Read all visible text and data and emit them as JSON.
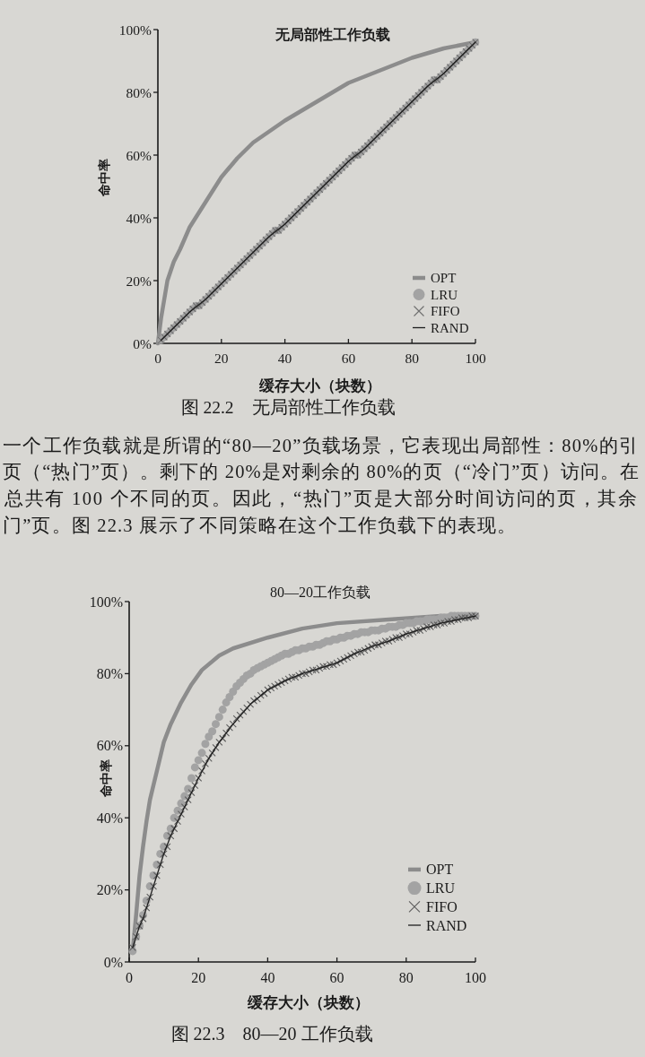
{
  "chart_data": [
    {
      "type": "line",
      "title": "无局部性工作负载",
      "xlabel": "缓存大小（块数）",
      "ylabel": "命中率",
      "annotations": [
        "图 22.2　无局部性工作负载"
      ],
      "xlim": [
        0,
        100
      ],
      "ylim": [
        0,
        100
      ],
      "xticks": [
        0,
        20,
        40,
        60,
        80,
        100
      ],
      "yticks": [
        {
          "value": 0,
          "label": "0%"
        },
        {
          "value": 20,
          "label": "20%"
        },
        {
          "value": 40,
          "label": "40%"
        },
        {
          "value": 60,
          "label": "60%"
        },
        {
          "value": 80,
          "label": "80%"
        },
        {
          "value": 100,
          "label": "100%"
        }
      ],
      "legend": "bottom right",
      "x": [
        1,
        2,
        3,
        4,
        5,
        6,
        7,
        8,
        9,
        10,
        11,
        12,
        13,
        14,
        15,
        16,
        17,
        18,
        19,
        20,
        21,
        22,
        23,
        24,
        25,
        26,
        27,
        28,
        29,
        30,
        31,
        32,
        33,
        34,
        35,
        36,
        37,
        38,
        39,
        40,
        41,
        42,
        43,
        44,
        45,
        46,
        47,
        48,
        49,
        50,
        51,
        52,
        53,
        54,
        55,
        56,
        57,
        58,
        59,
        60,
        61,
        62,
        63,
        64,
        65,
        66,
        67,
        68,
        69,
        70,
        71,
        72,
        73,
        74,
        75,
        76,
        77,
        78,
        79,
        80,
        81,
        82,
        83,
        84,
        85,
        86,
        87,
        88,
        89,
        90,
        91,
        92,
        93,
        94,
        95,
        96,
        97,
        98,
        99,
        100
      ],
      "series": [
        {
          "name": "OPT",
          "type": "line",
          "color": "#8c8c8c",
          "x": [
            0,
            1,
            3,
            5,
            7,
            10,
            15,
            20,
            25,
            30,
            40,
            50,
            60,
            70,
            80,
            90,
            100
          ],
          "values": [
            0,
            8,
            20,
            26,
            30,
            37,
            45,
            53,
            59,
            64,
            71,
            77,
            83,
            87,
            91,
            94,
            96
          ]
        },
        {
          "name": "LRU",
          "type": "scatter",
          "marker": "circle",
          "color": "#a3a3a3",
          "values": [
            1,
            2,
            3,
            4,
            5,
            6,
            7,
            8,
            9,
            10,
            11,
            12,
            12,
            13,
            14,
            15,
            16,
            17,
            18,
            19,
            20,
            21,
            22,
            23,
            24,
            25,
            26,
            27,
            28,
            29,
            30,
            31,
            32,
            33,
            34,
            35,
            36,
            36,
            37,
            38,
            39,
            40,
            41,
            42,
            43,
            44,
            45,
            46,
            47,
            48,
            49,
            50,
            51,
            52,
            53,
            54,
            55,
            56,
            57,
            58,
            59,
            60,
            60,
            61,
            62,
            63,
            64,
            65,
            66,
            67,
            68,
            69,
            70,
            71,
            72,
            73,
            74,
            75,
            76,
            77,
            78,
            79,
            80,
            81,
            82,
            83,
            84,
            84,
            85,
            86,
            87,
            88,
            89,
            90,
            91,
            92,
            93,
            94,
            95,
            96
          ]
        },
        {
          "name": "FIFO",
          "type": "scatter",
          "marker": "cross",
          "color": "#6e6e6e",
          "values": [
            1,
            2,
            3,
            4,
            5,
            6,
            7,
            8,
            9,
            10,
            11,
            12,
            12,
            13,
            14,
            15,
            16,
            17,
            18,
            19,
            20,
            21,
            22,
            23,
            24,
            25,
            26,
            27,
            28,
            29,
            30,
            31,
            32,
            33,
            34,
            35,
            36,
            36,
            37,
            38,
            39,
            40,
            41,
            42,
            43,
            44,
            45,
            46,
            47,
            48,
            49,
            50,
            51,
            52,
            53,
            54,
            55,
            56,
            57,
            58,
            59,
            60,
            60,
            61,
            62,
            63,
            64,
            65,
            66,
            67,
            68,
            69,
            70,
            71,
            72,
            73,
            74,
            75,
            76,
            77,
            78,
            79,
            80,
            81,
            82,
            83,
            84,
            84,
            85,
            86,
            87,
            88,
            89,
            90,
            91,
            92,
            93,
            94,
            95,
            96
          ]
        },
        {
          "name": "RAND",
          "type": "line",
          "color": "#1e1e1e",
          "x": [
            1,
            5,
            10,
            15,
            20,
            25,
            30,
            35,
            40,
            45,
            50,
            55,
            60,
            65,
            70,
            75,
            80,
            85,
            90,
            95,
            100
          ],
          "values": [
            1,
            5,
            10,
            14,
            19,
            24,
            29,
            34,
            38,
            43,
            48,
            53,
            58,
            62,
            67,
            72,
            77,
            82,
            86,
            91,
            96
          ]
        }
      ]
    },
    {
      "type": "other",
      "annotations": [
        "一个工作负载就是所谓的“80—20”负载场景，它表现出局部性：80%的引",
        "页（“热门”页）。剩下的 20%是对剩余的 80%的页（“冷门”页）访问。在",
        "总共有 100 个不同的页。因此，“热门”页是大部分时间访问的页，其余",
        "门”页。图 22.3 展示了不同策略在这个工作负载下的表现。"
      ]
    },
    {
      "type": "line",
      "title": "80—20工作负载",
      "xlabel": "缓存大小（块数）",
      "ylabel": "命中率",
      "annotations": [
        "图 22.3　80—20 工作负载"
      ],
      "xlim": [
        0,
        100
      ],
      "ylim": [
        0,
        100
      ],
      "xticks": [
        0,
        20,
        40,
        60,
        80,
        100
      ],
      "yticks": [
        {
          "value": 0,
          "label": "0%"
        },
        {
          "value": 20,
          "label": "20%"
        },
        {
          "value": 40,
          "label": "40%"
        },
        {
          "value": 60,
          "label": "60%"
        },
        {
          "value": 80,
          "label": "80%"
        },
        {
          "value": 100,
          "label": "100%"
        }
      ],
      "legend": "bottom right",
      "x": [
        1,
        2,
        3,
        4,
        5,
        6,
        7,
        8,
        9,
        10,
        11,
        12,
        13,
        14,
        15,
        16,
        17,
        18,
        19,
        20,
        21,
        22,
        23,
        24,
        25,
        26,
        27,
        28,
        29,
        30,
        31,
        32,
        33,
        34,
        35,
        36,
        37,
        38,
        39,
        40,
        41,
        42,
        43,
        44,
        45,
        46,
        47,
        48,
        49,
        50,
        51,
        52,
        53,
        54,
        55,
        56,
        57,
        58,
        59,
        60,
        61,
        62,
        63,
        64,
        65,
        66,
        67,
        68,
        69,
        70,
        71,
        72,
        73,
        74,
        75,
        76,
        77,
        78,
        79,
        80,
        81,
        82,
        83,
        84,
        85,
        86,
        87,
        88,
        89,
        90,
        91,
        92,
        93,
        94,
        95,
        96,
        97,
        98,
        99,
        100
      ],
      "series": [
        {
          "name": "OPT",
          "type": "line",
          "color": "#8c8c8c",
          "x": [
            1,
            2,
            3,
            4,
            5,
            6,
            7,
            8,
            10,
            12,
            15,
            18,
            21,
            26,
            30,
            40,
            50,
            60,
            75,
            90,
            100
          ],
          "values": [
            3,
            13,
            24,
            32,
            39,
            45,
            49,
            53,
            61,
            66,
            72,
            77,
            81,
            85,
            87,
            90,
            92.5,
            94,
            95,
            96,
            96
          ]
        },
        {
          "name": "LRU",
          "type": "scatter",
          "marker": "circle",
          "color": "#a3a3a3",
          "values": [
            3,
            7,
            10,
            13,
            17,
            21,
            24,
            27,
            30,
            32,
            35,
            37,
            40,
            42,
            44,
            46,
            48,
            51,
            54,
            56,
            58,
            60.5,
            62.5,
            64,
            66,
            68,
            70,
            72,
            73.5,
            75,
            76.5,
            77.5,
            78.5,
            79.5,
            80,
            81,
            81.5,
            82,
            82.5,
            83,
            83.5,
            84,
            84.5,
            85,
            85.5,
            85.5,
            86,
            86.5,
            86.5,
            87,
            87,
            87.5,
            87.5,
            88,
            88,
            88.5,
            89,
            89,
            89.5,
            89.5,
            90,
            90,
            90.5,
            90.5,
            91,
            91,
            91.5,
            91.5,
            91.5,
            92,
            92,
            92,
            92.5,
            92.5,
            93,
            93,
            93,
            93.5,
            93.5,
            94,
            94,
            94,
            94.5,
            94.5,
            94.5,
            95,
            95,
            95,
            95,
            95.5,
            95.5,
            95.5,
            96,
            96,
            96,
            96,
            96,
            96,
            96,
            96
          ]
        },
        {
          "name": "FIFO",
          "type": "scatter",
          "marker": "cross",
          "color": "#5e5e5e",
          "values": [
            4,
            7,
            10,
            12,
            15,
            18,
            21,
            24,
            27,
            30,
            32,
            35,
            37,
            39,
            41,
            43,
            45,
            47,
            49,
            51,
            53,
            55,
            56.5,
            58,
            59.5,
            61,
            62,
            63.5,
            65,
            66,
            67.5,
            68.5,
            69.5,
            70.5,
            71.5,
            72.5,
            73,
            74,
            74.5,
            75.5,
            76,
            76.5,
            77,
            77.5,
            78,
            78.5,
            79,
            79,
            79.5,
            80,
            80,
            80.5,
            81,
            81,
            81.5,
            82,
            82,
            82.5,
            82.5,
            83,
            83.5,
            84,
            84.5,
            85,
            85.5,
            86,
            86,
            86.5,
            87,
            87.5,
            88,
            88,
            88.5,
            89,
            89,
            89.5,
            90,
            90,
            90.5,
            91,
            91,
            91.5,
            92,
            92,
            92.5,
            93,
            93,
            93.5,
            93.5,
            94,
            94,
            94.5,
            94.5,
            95,
            95,
            95.5,
            95.5,
            95.5,
            96,
            96
          ]
        },
        {
          "name": "RAND",
          "type": "line",
          "color": "#1e1e1e",
          "x": [
            1,
            2,
            3,
            4,
            5,
            6,
            8,
            10,
            12,
            14,
            17,
            20,
            23,
            26,
            30,
            35,
            40,
            45,
            50,
            55,
            60,
            65,
            70,
            75,
            80,
            85,
            90,
            95,
            100
          ],
          "values": [
            4,
            7,
            10,
            12,
            15,
            18,
            24,
            30,
            35,
            39,
            45,
            51,
            56.5,
            61,
            66,
            71.5,
            75.5,
            78,
            80,
            81.5,
            83,
            85.5,
            87.5,
            89,
            91,
            92.5,
            94,
            95,
            96
          ]
        }
      ]
    }
  ]
}
